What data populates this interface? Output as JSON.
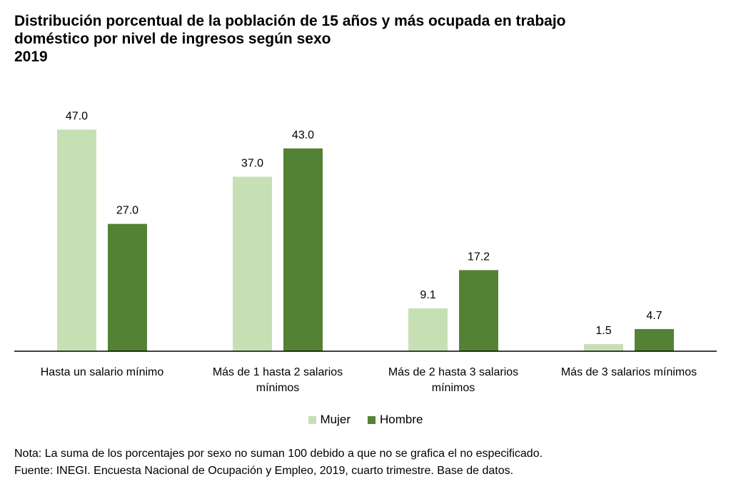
{
  "title": {
    "line1": "Distribución porcentual de la población de 15 años y más ocupada en trabajo",
    "line2": "doméstico por nivel de ingresos según sexo",
    "year": "2019"
  },
  "colors": {
    "mujer": "#c6e0b4",
    "hombre": "#548235",
    "axis": "#000000"
  },
  "chart_data": {
    "type": "bar",
    "title": "Distribución porcentual de la población de 15 años y más ocupada en trabajo doméstico por nivel de ingresos según sexo 2019",
    "categories": [
      [
        "Hasta un salario mínimo"
      ],
      [
        "Más de 1 hasta 2 salarios",
        "mínimos"
      ],
      [
        "Más de 2 hasta 3 salarios",
        "mínimos"
      ],
      [
        "Más de 3 salarios mínimos"
      ]
    ],
    "series": [
      {
        "name": "Mujer",
        "values": [
          47.0,
          37.0,
          9.1,
          1.5
        ]
      },
      {
        "name": "Hombre",
        "values": [
          27.0,
          43.0,
          17.2,
          4.7
        ]
      }
    ],
    "value_labels": [
      [
        "47.0",
        "37.0",
        "9.1",
        "1.5"
      ],
      [
        "27.0",
        "43.0",
        "17.2",
        "4.7"
      ]
    ],
    "ylim": [
      0,
      50
    ],
    "xlabel": "",
    "ylabel": "",
    "grid": false,
    "legend": "bottom-center"
  },
  "legend": {
    "mujer": "Mujer",
    "hombre": "Hombre"
  },
  "notes": {
    "nota": "Nota: La suma de los porcentajes por sexo no suman 100 debido a que no se grafica el no especificado.",
    "fuente": "Fuente: INEGI. Encuesta Nacional de Ocupación y Empleo, 2019, cuarto trimestre. Base de datos."
  }
}
